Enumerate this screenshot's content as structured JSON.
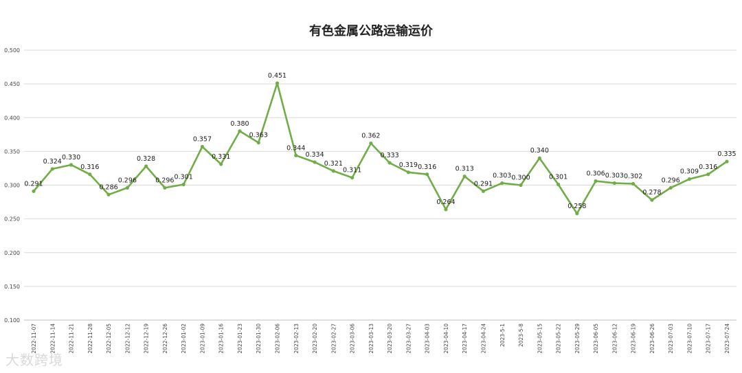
{
  "chart_data": {
    "type": "line",
    "title": "有色金属公路运输运价",
    "ylim": [
      0.1,
      0.5
    ],
    "yticks": [
      "0.100",
      "0.150",
      "0.200",
      "0.250",
      "0.300",
      "0.350",
      "0.400",
      "0.450",
      "0.500"
    ],
    "grid": true,
    "legend": "none",
    "line_color": "#70ad47",
    "categories": [
      "2022-11-07",
      "2022-11-14",
      "2022-11-21",
      "2022-11-28",
      "2022-12-05",
      "2022-12-12",
      "2022-12-19",
      "2022-12-26",
      "2023-01-02",
      "2023-01-09",
      "2023-01-16",
      "2023-01-23",
      "2023-01-30",
      "2023-02-06",
      "2023-02-13",
      "2023-02-20",
      "2023-02-27",
      "2023-03-06",
      "2023-03-13",
      "2023-03-20",
      "2023-03-27",
      "2023-04-03",
      "2023-04-10",
      "2023-04-17",
      "2023-04-24",
      "2023-5-1",
      "2023-5-8",
      "2023-05-15",
      "2023-05-22",
      "2023-05-29",
      "2023-06-05",
      "2023-06-12",
      "2023-06-19",
      "2023-06-26",
      "2023-07-03",
      "2023-07-10",
      "2023-07-17",
      "2023-07-24"
    ],
    "values": [
      0.291,
      0.324,
      0.33,
      0.316,
      0.286,
      0.296,
      0.328,
      0.296,
      0.301,
      0.357,
      0.331,
      0.38,
      0.363,
      0.451,
      0.344,
      0.334,
      0.321,
      0.311,
      0.362,
      0.333,
      0.319,
      0.316,
      0.264,
      0.313,
      0.291,
      0.303,
      0.3,
      0.34,
      0.301,
      0.258,
      0.306,
      0.303,
      0.302,
      0.278,
      0.296,
      0.309,
      0.316,
      0.335
    ],
    "labels": [
      "0.291",
      "0.324",
      "0.330",
      "0.316",
      "0.286",
      "0.296",
      "0.328",
      "0.296",
      "0.301",
      "0.357",
      "0.331",
      "0.380",
      "0.363",
      "0.451",
      "0.344",
      "0.334",
      "0.321",
      "0.311",
      "0.362",
      "0.333",
      "0.319",
      "0.316",
      "0.264",
      "0.313",
      "0.291",
      "0.303",
      "0.300",
      "0.340",
      "0.301",
      "0.258",
      "0.306",
      "0.303",
      "0.302",
      "0.278",
      "0.296",
      "0.309",
      "0.316",
      "0.335"
    ]
  },
  "watermark": "大数跨境"
}
